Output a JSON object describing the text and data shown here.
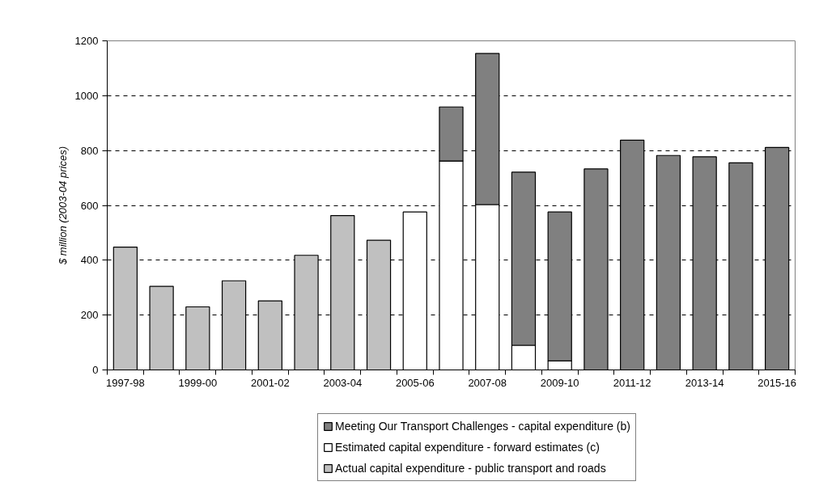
{
  "chart_data": {
    "type": "bar",
    "stacked": true,
    "ylabel": "$ million (2003-04 prices)",
    "categories": [
      "1997-98",
      null,
      "1999-00",
      null,
      "2001-02",
      null,
      "2003-04",
      null,
      "2005-06",
      null,
      "2007-08",
      null,
      "2009-10",
      null,
      "2011-12",
      null,
      "2013-14",
      null,
      "2015-16"
    ],
    "series": [
      {
        "name": "Actual capital expenditure - public transport and roads",
        "color": "#c0c0c0",
        "values": [
          448,
          305,
          230,
          325,
          252,
          418,
          563,
          473,
          null,
          null,
          null,
          null,
          null,
          null,
          null,
          null,
          null,
          null,
          null
        ]
      },
      {
        "name": "Estimated capital expenditure - forward estimates (c)",
        "color": "#ffffff",
        "values": [
          null,
          null,
          null,
          null,
          null,
          null,
          null,
          null,
          576,
          762,
          603,
          90,
          33,
          null,
          null,
          null,
          null,
          null,
          null
        ]
      },
      {
        "name": "Meeting Our Transport Challenges - capital expenditure (b)",
        "color": "#808080",
        "values": [
          null,
          null,
          null,
          null,
          null,
          null,
          null,
          null,
          null,
          197,
          551,
          631,
          543,
          733,
          838,
          782,
          777,
          755,
          811
        ]
      }
    ],
    "ylim": [
      0,
      1200
    ],
    "yticks": [
      0,
      200,
      400,
      600,
      800,
      1000,
      1200
    ],
    "grid": "y",
    "legend": "bottom"
  }
}
